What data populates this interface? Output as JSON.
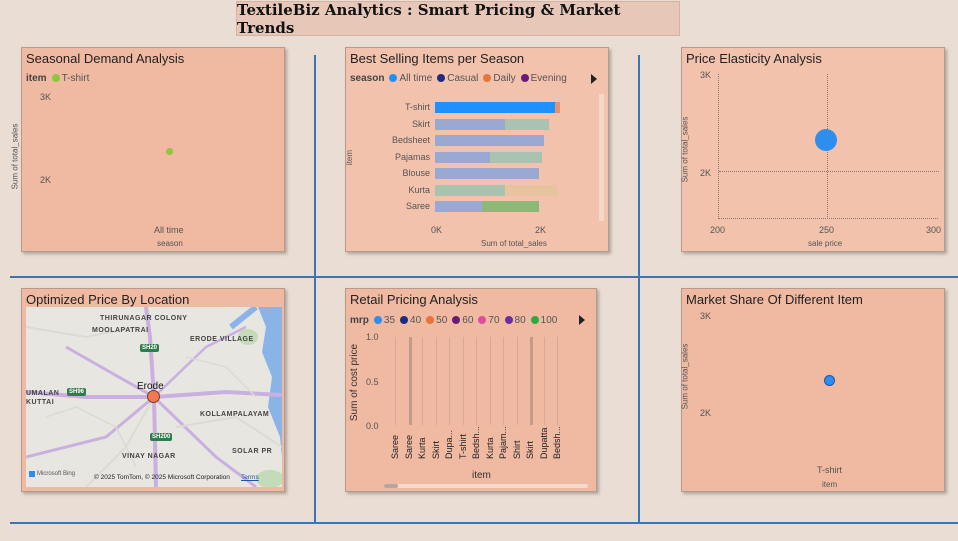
{
  "page_title": "TextileBiz Analytics : Smart Pricing & Market Trends",
  "colors": {
    "background": "#e9ddd4",
    "divider": "#3d73b8",
    "panel": "#efb9a2"
  },
  "seasonal": {
    "title": "Seasonal Demand Analysis",
    "legend_label": "item",
    "legend_item": "T-shirt",
    "y_ticks": [
      "3K",
      "2K"
    ],
    "ylabel": "Sum of total_sales",
    "x_tick": "All time",
    "xlabel": "season"
  },
  "best_selling": {
    "title": "Best Selling Items per Season",
    "legend_label": "season",
    "legend": [
      "All time",
      "Casual",
      "Daily",
      "Evening"
    ],
    "items": [
      "T-shirt",
      "Skirt",
      "Bedsheet",
      "Pajamas",
      "Blouse",
      "Kurta",
      "Saree"
    ],
    "ylabel": "item",
    "x_ticks": [
      "0K",
      "2K"
    ],
    "xlabel": "Sum of total_sales"
  },
  "elasticity": {
    "title": "Price Elasticity Analysis",
    "y_ticks": [
      "3K",
      "2K"
    ],
    "ylabel": "Sum of total_sales",
    "x_ticks": [
      "200",
      "250",
      "300"
    ],
    "xlabel": "sale price"
  },
  "location": {
    "title": "Optimized Price By Location",
    "places": {
      "thirunagar": "THIRUNAGAR COLONY",
      "moolapatrai": "MOOLAPATRAI",
      "erode_village": "ERODE VILLAGE",
      "erode": "Erode",
      "umalan": "UMALAN",
      "kuttai": "KUTTAI",
      "kollampalayam": "KOLLAMPALAYAM",
      "vinay": "VINAY NAGAR",
      "solar": "SOLAR PR"
    },
    "roads": [
      "SH20",
      "SH96",
      "SH200"
    ],
    "bing": "Microsoft Bing",
    "copyright": "© 2025 TomTom, © 2025 Microsoft Corporation",
    "terms": "Terms"
  },
  "retail": {
    "title": "Retail Pricing Analysis",
    "legend_label": "mrp",
    "legend": [
      "35",
      "40",
      "50",
      "60",
      "70",
      "80",
      "100"
    ],
    "y_ticks": [
      "1.0",
      "0.5",
      "0.0"
    ],
    "ylabel": "Sum of cost price",
    "items": [
      "Saree",
      "Saree",
      "Kurta",
      "Skirt",
      "Dupa...",
      "T-shirt",
      "Bedsh...",
      "Kurta",
      "Pajam...",
      "Shirt",
      "Skirt",
      "Dupatta",
      "Bedsh..."
    ],
    "xlabel": "item"
  },
  "market_share": {
    "title": "Market Share Of Different Item",
    "y_ticks": [
      "3K",
      "2K"
    ],
    "ylabel": "Sum of total_sales",
    "x_tick": "T-shirt",
    "xlabel": "item"
  },
  "chart_data": [
    {
      "type": "scatter",
      "title": "Seasonal Demand Analysis",
      "xlabel": "season",
      "ylabel": "Sum of total_sales",
      "x": [
        "All time"
      ],
      "series": [
        {
          "name": "T-shirt",
          "values": [
            2300
          ]
        }
      ]
    },
    {
      "type": "bar",
      "title": "Best Selling Items per Season",
      "xlabel": "Sum of total_sales",
      "ylabel": "item",
      "categories": [
        "T-shirt",
        "Skirt",
        "Bedsheet",
        "Pajamas",
        "Blouse",
        "Kurta",
        "Saree"
      ],
      "series": [
        {
          "name": "All time",
          "values": [
            2300,
            1350,
            2100,
            1050,
            2000,
            1350,
            900
          ]
        },
        {
          "name": "Daily",
          "values": [
            100,
            850,
            0,
            1000,
            0,
            1000,
            1100
          ]
        }
      ]
    },
    {
      "type": "scatter",
      "title": "Price Elasticity Analysis",
      "xlabel": "sale price",
      "ylabel": "Sum of total_sales",
      "xlim": [
        200,
        300
      ],
      "points": [
        {
          "x": 250,
          "y": 2300
        }
      ]
    },
    {
      "type": "bar",
      "title": "Retail Pricing Analysis",
      "xlabel": "item",
      "ylabel": "Sum of cost price",
      "ylim": [
        0,
        1
      ]
    },
    {
      "type": "scatter",
      "title": "Market Share Of Different Item",
      "xlabel": "item",
      "ylabel": "Sum of total_sales",
      "x": [
        "T-shirt"
      ],
      "series": [
        {
          "values": [
            2300
          ]
        }
      ]
    }
  ]
}
